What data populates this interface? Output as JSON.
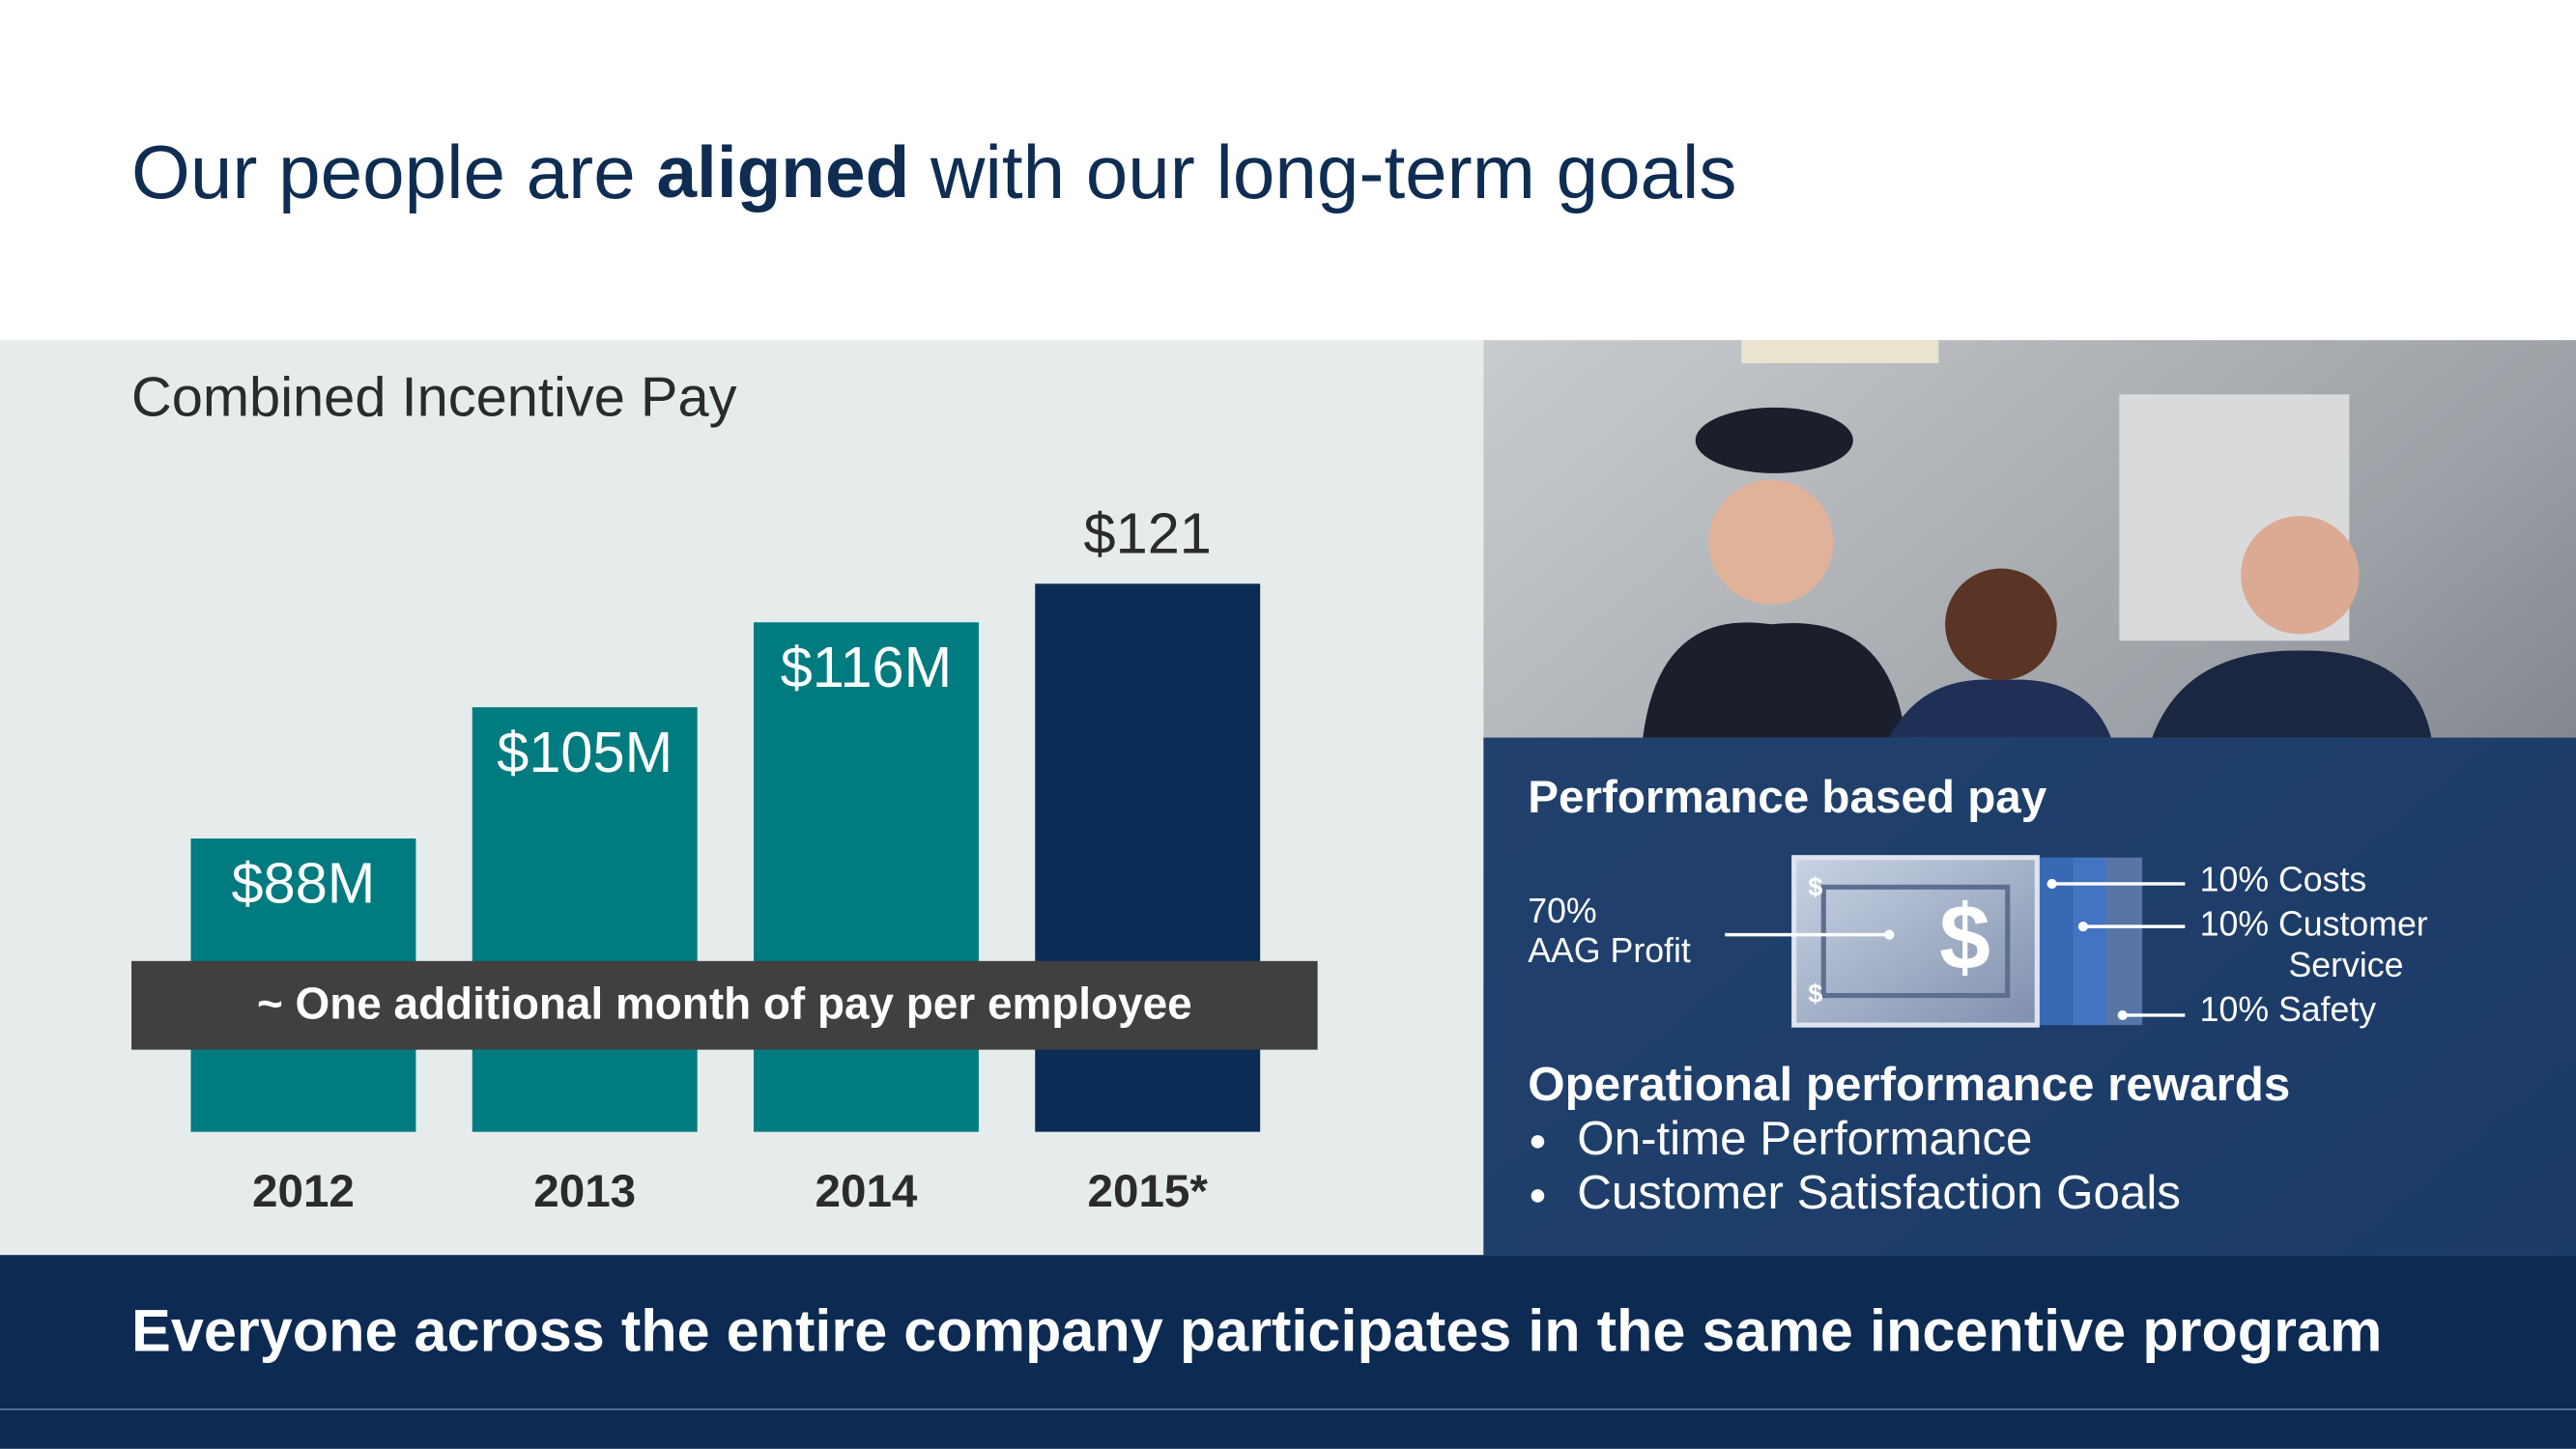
{
  "header": {
    "title_start": "Our people are ",
    "title_emphasis": "aligned",
    "title_end": " with our long-term goals"
  },
  "chart_data": {
    "type": "bar",
    "title": "Combined Incentive Pay",
    "categories": [
      "2012",
      "2013",
      "2014",
      "2015*"
    ],
    "values": [
      88,
      105,
      116,
      121
    ],
    "value_labels": [
      "$88M",
      "$105M",
      "$116M",
      "$121"
    ],
    "colors": [
      "#007b7f",
      "#007b7f",
      "#007b7f",
      "#0b2d55"
    ],
    "ylim": [
      50,
      125
    ],
    "annotation": "~ One additional month of pay per employee"
  },
  "panel": {
    "title": "Performance based pay",
    "left_pct": "70%",
    "left_label": "AAG Profit",
    "right_items": [
      "10% Costs",
      "10% Customer",
      "Service",
      "10% Safety"
    ],
    "rewards_title": "Operational performance rewards",
    "bullets": [
      "On-time Performance",
      "Customer Satisfaction Goals"
    ]
  },
  "footer": {
    "text": "Everyone across the entire company participates in the same incentive program"
  }
}
